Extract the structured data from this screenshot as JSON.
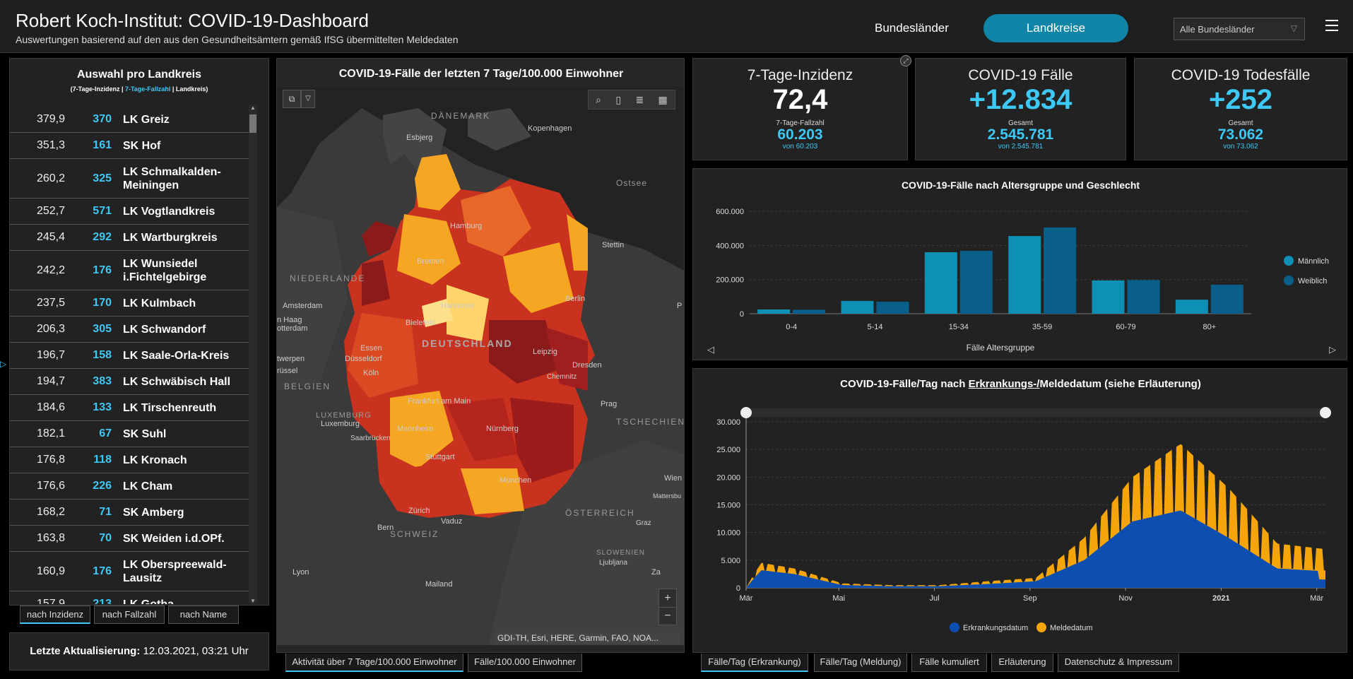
{
  "header": {
    "title": "Robert Koch-Institut: COVID-19-Dashboard",
    "subtitle": "Auswertungen basierend auf den aus den Gesundheitsämtern gemäß IfSG übermittelten Meldedaten",
    "nav_bundeslaender": "Bundesländer",
    "nav_landkreise": "Landkreise",
    "select_value": "Alle Bundesländer"
  },
  "list": {
    "title": "Auswahl pro Landkreis",
    "legend_inzidenz": "(7-Tage-Inzidenz | ",
    "legend_fallzahl": "7-Tage-Fallzahl",
    "legend_landkreis": " | Landkreis)",
    "rows": [
      {
        "inz": "379,9",
        "cnt": "370",
        "name": "LK Greiz"
      },
      {
        "inz": "351,3",
        "cnt": "161",
        "name": "SK Hof"
      },
      {
        "inz": "260,2",
        "cnt": "325",
        "name": "LK Schmalkalden-Meiningen"
      },
      {
        "inz": "252,7",
        "cnt": "571",
        "name": "LK Vogtlandkreis"
      },
      {
        "inz": "245,4",
        "cnt": "292",
        "name": "LK Wartburgkreis"
      },
      {
        "inz": "242,2",
        "cnt": "176",
        "name": "LK Wunsiedel i.Fichtelgebirge"
      },
      {
        "inz": "237,5",
        "cnt": "170",
        "name": "LK Kulmbach"
      },
      {
        "inz": "206,3",
        "cnt": "305",
        "name": "LK Schwandorf"
      },
      {
        "inz": "196,7",
        "cnt": "158",
        "name": "LK Saale-Orla-Kreis"
      },
      {
        "inz": "194,7",
        "cnt": "383",
        "name": "LK Schwäbisch Hall"
      },
      {
        "inz": "184,6",
        "cnt": "133",
        "name": "LK Tirschenreuth"
      },
      {
        "inz": "182,1",
        "cnt": "67",
        "name": "SK Suhl"
      },
      {
        "inz": "176,8",
        "cnt": "118",
        "name": "LK Kronach"
      },
      {
        "inz": "176,6",
        "cnt": "226",
        "name": "LK Cham"
      },
      {
        "inz": "168,2",
        "cnt": "71",
        "name": "SK Amberg"
      },
      {
        "inz": "163,8",
        "cnt": "70",
        "name": "SK Weiden i.d.OPf."
      },
      {
        "inz": "160,9",
        "cnt": "176",
        "name": "LK Oberspreewald-Lausitz"
      },
      {
        "inz": "157,9",
        "cnt": "213",
        "name": "LK Gotha"
      }
    ],
    "sort_tabs": [
      "nach Inzidenz",
      "nach Fallzahl",
      "nach Name"
    ]
  },
  "update": {
    "label": "Letzte Aktualisierung:",
    "value": "12.03.2021, 03:21 Uhr"
  },
  "map": {
    "title": "COVID-19-Fälle der letzten 7 Tage/100.000 Einwohner",
    "attribution": "GDI-TH, Esri, HERE, Garmin, FAO, NOA...",
    "zoom_in": "+",
    "zoom_out": "−",
    "labels": {
      "daenemark": "DÄNEMARK",
      "kopenhagen": "Kopenhagen",
      "esbjerg": "Esbjerg",
      "ostsee": "Ostsee",
      "hamburg": "Hamburg",
      "stettin": "Stettin",
      "bremen": "Bremen",
      "niederlande": "NIEDERLANDE",
      "amsterdam": "Amsterdam",
      "hannover": "Hannover",
      "berlin": "Berlin",
      "denhaag": "n Haag",
      "rotterdam": "otterdam",
      "bielefeld": "Bielefeld",
      "deutschland": "DEUTSCHLAND",
      "essen": "Essen",
      "duesseldorf": "Düsseldorf",
      "leipzig": "Leipzig",
      "twerpen": "twerpen",
      "koeln": "Köln",
      "dresden": "Dresden",
      "ruessel": "rüssel",
      "chemnitz": "Chemnitz",
      "belgien": "BELGIEN",
      "frankfurt": "Frankfurt am Main",
      "prag": "Prag",
      "luxemburg_c": "LUXEMBURG",
      "luxemburg": "Luxemburg",
      "tschechien": "TSCHECHIEN",
      "saarbruecken": "Saarbrücken",
      "mannheim": "Mannheim",
      "nuernberg": "Nürnberg",
      "stuttgart": "Stuttgart",
      "wien": "Wien",
      "mattersbg": "Mattersbu",
      "muenchen": "München",
      "oesterreich": "ÖSTERREICH",
      "zuerich": "Zürich",
      "vaduz": "Vaduz",
      "graz": "Graz",
      "bern": "Bern",
      "schweiz": "SCHWEIZ",
      "slowenien": "SLOWENIEN",
      "ljubljana": "Ljubljana",
      "za": "Za",
      "lyon": "Lyon",
      "mailand": "Mailand",
      "p": "P"
    },
    "tabs": [
      "Aktivität über 7 Tage/100.000 Einwohner",
      "Fälle/100.000 Einwohner"
    ]
  },
  "kpis": [
    {
      "label": "7-Tage-Inzidenz",
      "value": "72,4",
      "small": "7-Tage-Fallzahl",
      "num": "60.203",
      "von": "von 60.203",
      "color": "#ffffff"
    },
    {
      "label": "COVID-19 Fälle",
      "value": "+12.834",
      "small": "Gesamt",
      "num": "2.545.781",
      "von": "von 2.545.781",
      "color": "#3ec8f5"
    },
    {
      "label": "COVID-19 Todesfälle",
      "value": "+252",
      "small": "Gesamt",
      "num": "73.062",
      "von": "von 73.062",
      "color": "#3ec8f5"
    }
  ],
  "chart_data": [
    {
      "type": "bar",
      "title": "COVID-19-Fälle nach Altersgruppe und Geschlecht",
      "xlabel": "Fälle Altersgruppe",
      "ylabel": "",
      "categories": [
        "0-4",
        "5-14",
        "15-34",
        "35-59",
        "60-79",
        "80+"
      ],
      "series": [
        {
          "name": "Männlich",
          "values": [
            25000,
            75000,
            360000,
            455000,
            195000,
            82000
          ],
          "color": "#0e8fb5"
        },
        {
          "name": "Weiblich",
          "values": [
            23000,
            70000,
            368000,
            505000,
            197000,
            170000
          ],
          "color": "#0a5f8a"
        }
      ],
      "yticks": [
        "0",
        "200.000",
        "400.000",
        "600.000"
      ],
      "ylim": [
        0,
        600000
      ],
      "legend": "right"
    },
    {
      "type": "area",
      "title_pre": "COVID-19-Fälle/Tag nach ",
      "title_link": "Erkrankungs-/",
      "title_post": "Meldedatum (siehe Erläuterung)",
      "xticks": [
        "Mär",
        "Mai",
        "Jul",
        "Sep",
        "Nov",
        "2021",
        "Mär"
      ],
      "yticks": [
        "0",
        "5.000",
        "10.000",
        "15.000",
        "20.000",
        "25.000",
        "30.000"
      ],
      "ylim": [
        0,
        30000
      ],
      "series": [
        {
          "name": "Erkrankungsdatum",
          "color": "#0d4fb0"
        },
        {
          "name": "Meldedatum",
          "color": "#f5a50a"
        }
      ],
      "monthly_approx": {
        "months": [
          "2020-03",
          "2020-04",
          "2020-05",
          "2020-06",
          "2020-07",
          "2020-08",
          "2020-09",
          "2020-10",
          "2020-11",
          "2020-12",
          "2021-01",
          "2021-02",
          "2021-03"
        ],
        "erkrankung": [
          3500,
          2500,
          500,
          300,
          300,
          700,
          1200,
          5000,
          12000,
          14000,
          9000,
          3500,
          3000
        ],
        "meldedatum": [
          5000,
          3500,
          800,
          500,
          500,
          1200,
          1800,
          9000,
          20000,
          26000,
          18000,
          8000,
          7000
        ]
      },
      "legend": "bottom"
    }
  ],
  "chart_nav": {
    "prev": "◁",
    "next": "▷"
  },
  "bottom_tabs": [
    "Fälle/Tag (Erkrankung)",
    "Fälle/Tag (Meldung)",
    "Fälle kumuliert",
    "Erläuterung",
    "Datenschutz & Impressum"
  ]
}
